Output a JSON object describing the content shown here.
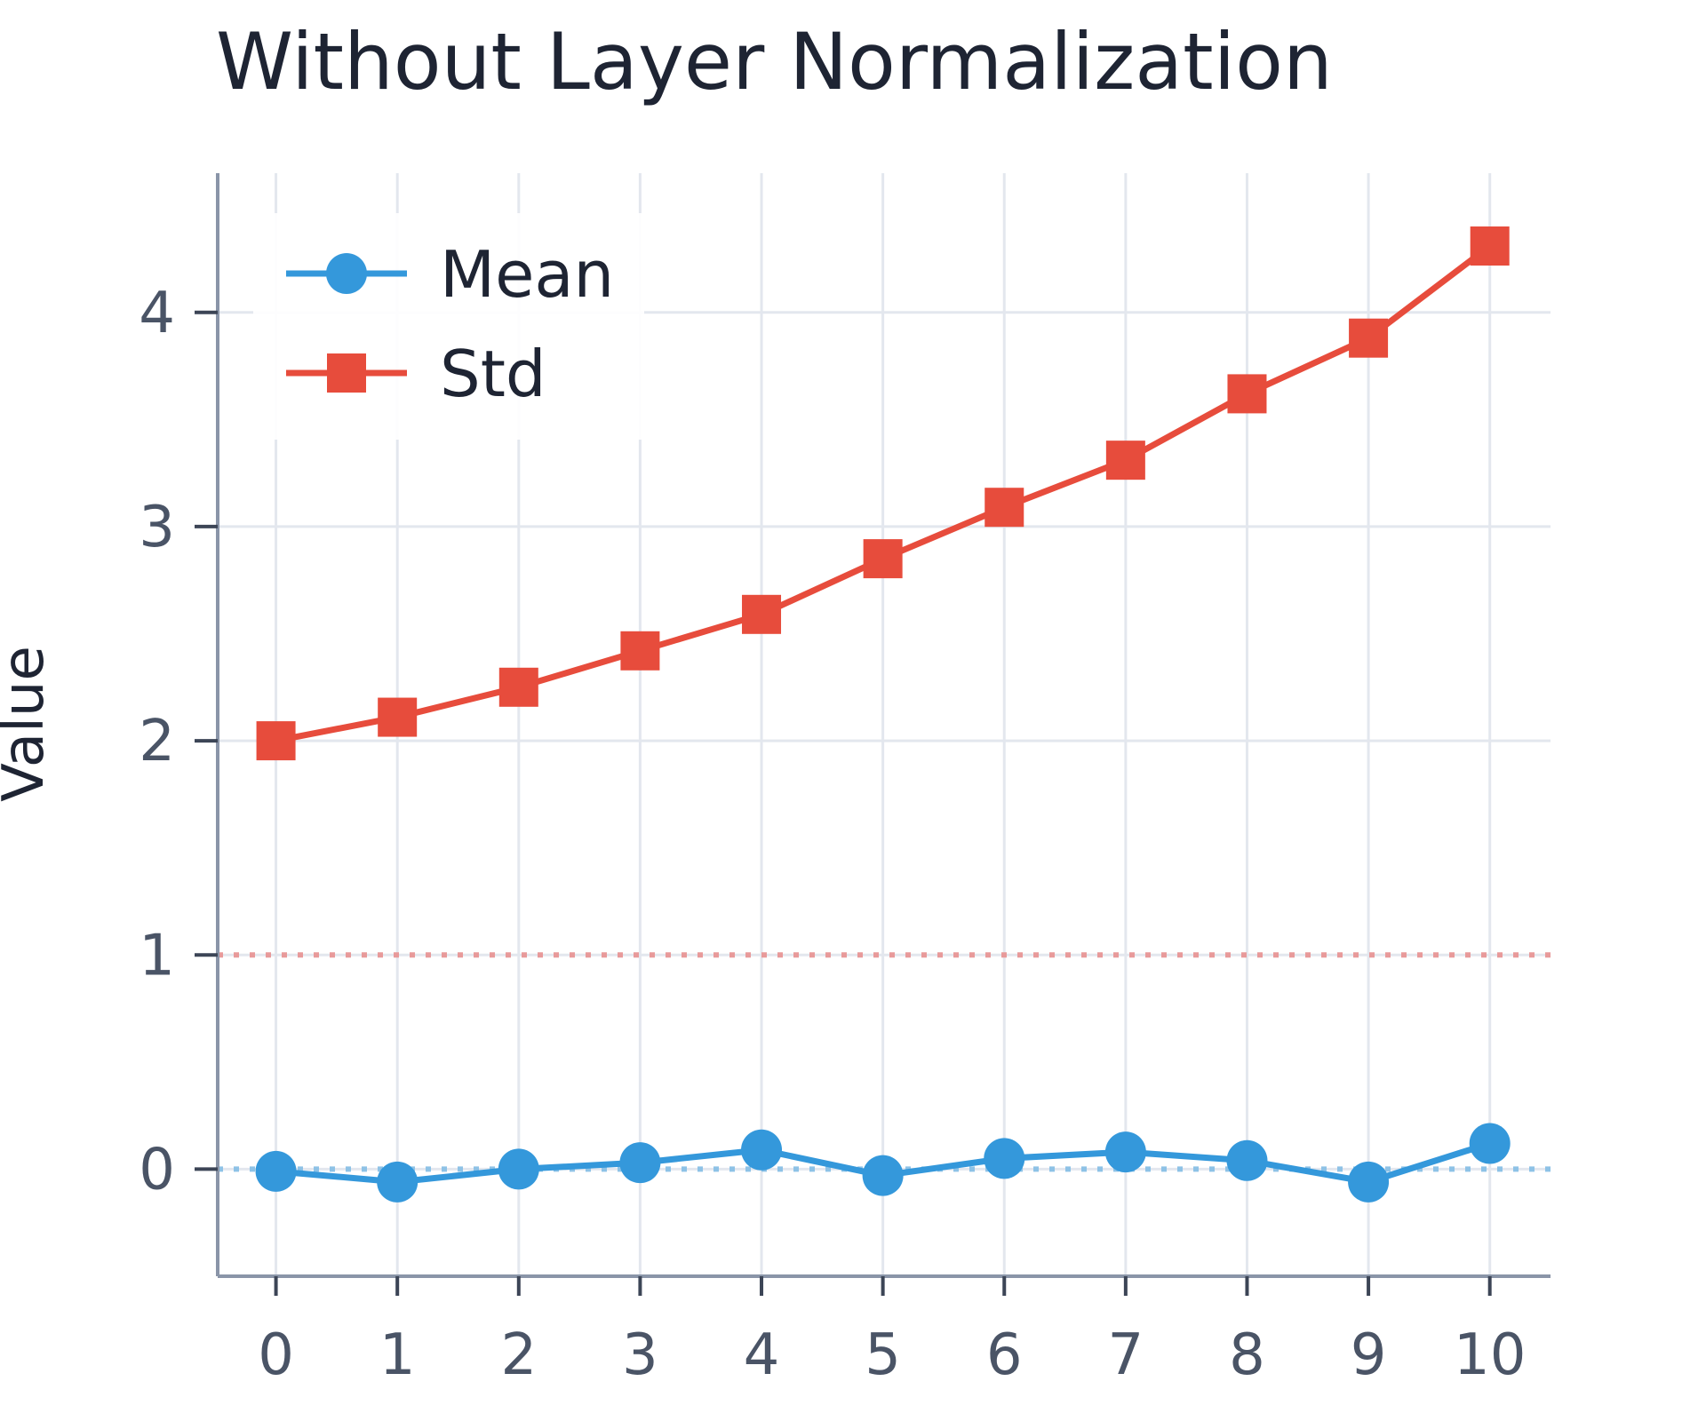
{
  "chart_data": {
    "type": "line",
    "title": "Without Layer Normalization",
    "xlabel": "",
    "ylabel": "Value",
    "x": [
      0,
      1,
      2,
      3,
      4,
      5,
      6,
      7,
      8,
      9,
      10
    ],
    "xlim": [
      -0.48,
      10.5
    ],
    "ylim": [
      -0.5,
      4.65
    ],
    "x_ticks": [
      "0",
      "1",
      "2",
      "3",
      "4",
      "5",
      "6",
      "7",
      "8",
      "9",
      "10"
    ],
    "y_ticks": [
      "0",
      "1",
      "2",
      "3",
      "4"
    ],
    "grid": true,
    "legend_position": "top-left",
    "reference_lines": [
      {
        "y": 1,
        "style": "dotted",
        "color": "#e89a9a"
      },
      {
        "y": 0,
        "style": "dotted",
        "color": "#8ec2e6"
      }
    ],
    "series": [
      {
        "name": "Mean",
        "marker": "circle",
        "color": "#3498db",
        "values": [
          -0.01,
          -0.06,
          0.0,
          0.03,
          0.09,
          -0.03,
          0.05,
          0.08,
          0.04,
          -0.06,
          0.12
        ]
      },
      {
        "name": "Std",
        "marker": "square",
        "color": "#e74c3c",
        "values": [
          2.0,
          2.11,
          2.25,
          2.42,
          2.59,
          2.85,
          3.09,
          3.31,
          3.62,
          3.88,
          4.31
        ]
      }
    ]
  }
}
